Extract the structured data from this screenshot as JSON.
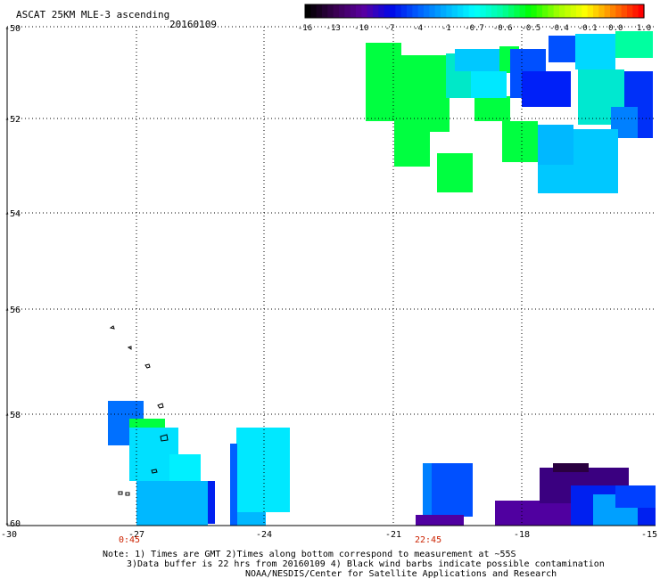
{
  "header": {
    "title": "ASCAT 25KM MLE-3 ascending",
    "date": "20160109"
  },
  "colorbar": {
    "labels": [
      "-16",
      "-13",
      "-10",
      "-7",
      "-4",
      "-1",
      "-0.7",
      "-0.6",
      "-0.5",
      "-0.4",
      "-0.1",
      "0.0",
      "1.0"
    ],
    "colors": [
      "#000000",
      "#3a0052",
      "#5a00a0",
      "#0008e8",
      "#0060ff",
      "#00b4ff",
      "#00ffff",
      "#00ffa0",
      "#00ff00",
      "#a0ff00",
      "#ffff00",
      "#ff8000",
      "#ff0000"
    ]
  },
  "axes": {
    "y_labels": [
      "-50",
      "-52",
      "-54",
      "-56",
      "-58",
      "-60"
    ],
    "x_labels": [
      "-30",
      "-27",
      "-24",
      "-21",
      "-18",
      "-15"
    ]
  },
  "time_labels": [
    "0:45",
    "22:45"
  ],
  "footer": {
    "line1": "Note: 1) Times are GMT 2)Times along bottom correspond to measurement at ~55S",
    "line2": "3)Data buffer is 22 hrs from 20160109 4) Black wind barbs indicate possible contamination",
    "line3": "NOAA/NESDIS/Center for Satellite Applications and Research"
  },
  "colors": {
    "green": "#00ff40",
    "cyan": "#00e8ff",
    "light_blue": "#00c8ff",
    "blue": "#0050ff",
    "dark_blue": "#0010ee",
    "purple": "#5000a0",
    "dark_purple": "#2a0040",
    "time_label": "#cc2200"
  }
}
